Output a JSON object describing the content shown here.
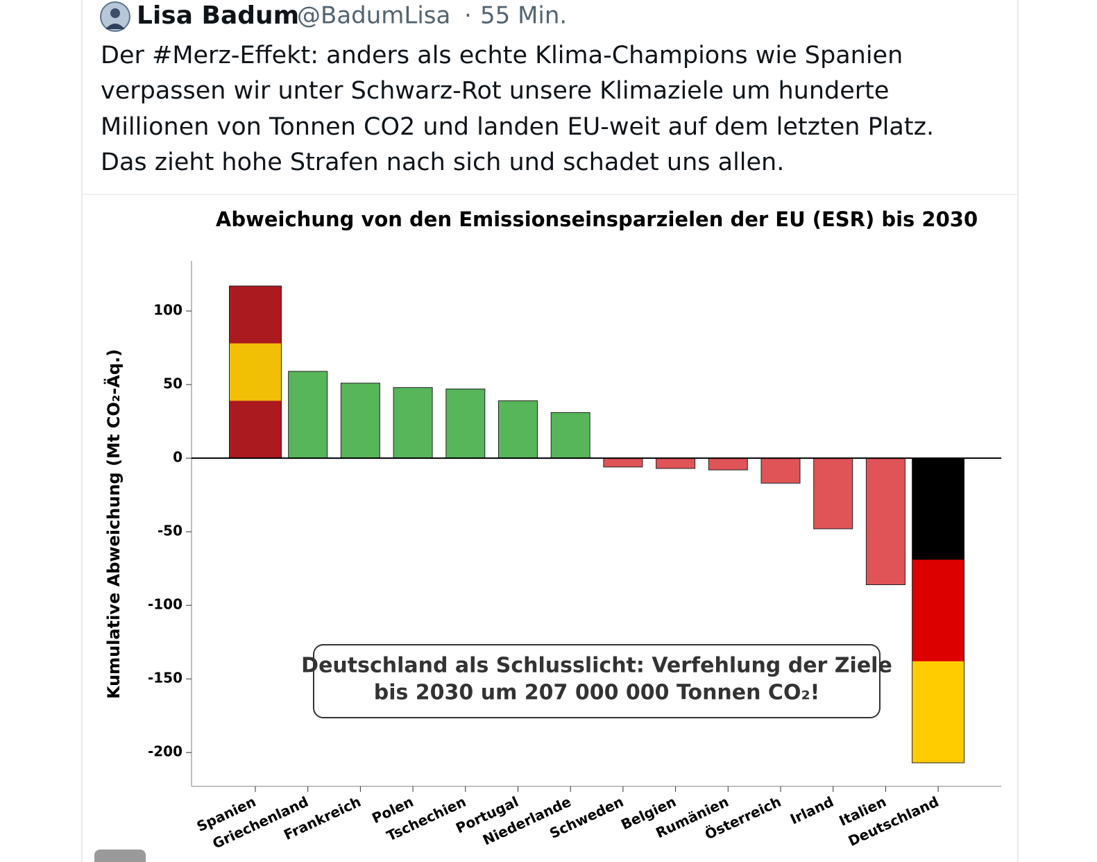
{
  "tweet": {
    "name": "Lisa Badum",
    "handle": "@BadumLisa",
    "time": "55 Min.",
    "text_lines": [
      "Der #Merz-Effekt: anders als echte Klima-Champions wie Spanien",
      "verpassen wir unter Schwarz-Rot unsere Klimaziele um hunderte",
      "Millionen von Tonnen CO2 und landen EU-weit auf dem letzten Platz.",
      "Das zieht hohe Strafen nach sich und schadet uns allen."
    ]
  },
  "chart_data": {
    "type": "bar",
    "title": "Abweichung von den Emissionseinsparzielen der EU (ESR) bis 2030",
    "y_label": "Kumulative Abweichung (Mt CO₂-Äq.)",
    "annotation": [
      "Deutschland als Schlusslicht: Verfehlung der Ziele",
      "bis 2030 um 207 000 000 Tonnen CO₂!"
    ],
    "categories": [
      "Spanien",
      "Griechenland",
      "Frankreich",
      "Polen",
      "Tschechien",
      "Portugal",
      "Niederlande",
      "Schweden",
      "Belgien",
      "Rumänien",
      "Österreich",
      "Irland",
      "Italien",
      "Deutschland"
    ],
    "values": [
      117,
      59,
      51,
      48,
      47,
      39,
      31,
      -6,
      -7,
      -8,
      -17,
      -48,
      -86,
      -207
    ],
    "colors": [
      [
        "#aa1a1f",
        "#f1c004",
        "#aa1a1f"
      ],
      "#57b55a",
      "#57b55a",
      "#57b55a",
      "#57b55a",
      "#57b55a",
      "#57b55a",
      "#e05356",
      "#e05356",
      "#e05356",
      "#e05356",
      "#e05356",
      "#e05356",
      [
        "#000000",
        "#dd0000",
        "#ffcc00"
      ]
    ],
    "ylim": [
      -223,
      134
    ],
    "yticks": [
      -200,
      -150,
      -100,
      -50,
      0,
      50,
      100
    ]
  }
}
